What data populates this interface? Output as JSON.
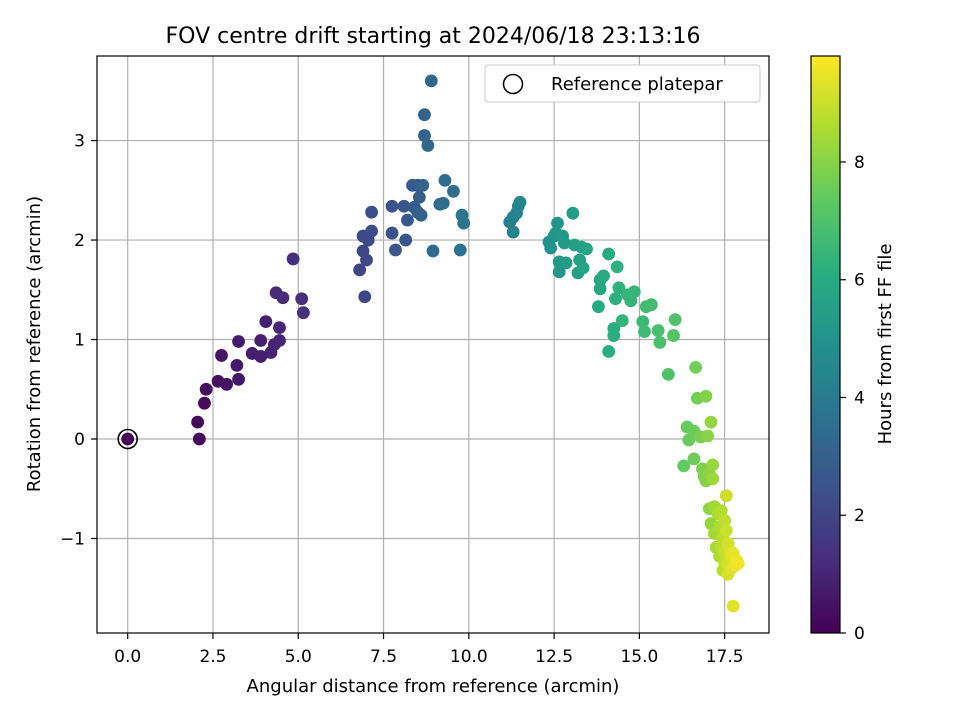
{
  "chart_data": {
    "type": "scatter",
    "title": "FOV centre drift starting at 2024/06/18 23:13:16",
    "xlabel": "Angular distance from reference (arcmin)",
    "ylabel": "Rotation from reference (arcmin)",
    "xlim": [
      -0.9,
      18.8
    ],
    "ylim": [
      -1.95,
      3.85
    ],
    "xticks": [
      0.0,
      2.5,
      5.0,
      7.5,
      10.0,
      12.5,
      15.0,
      17.5
    ],
    "xtick_labels": [
      "0.0",
      "2.5",
      "5.0",
      "7.5",
      "10.0",
      "12.5",
      "15.0",
      "17.5"
    ],
    "yticks": [
      -1,
      0,
      1,
      2,
      3
    ],
    "ytick_labels": [
      "−1",
      "0",
      "1",
      "2",
      "3"
    ],
    "grid": true,
    "legend": {
      "placement": "upper-right",
      "entries": [
        "Reference platepar"
      ]
    },
    "colorbar": {
      "label": "Hours from first FF file",
      "range": [
        0,
        9.8
      ],
      "ticks": [
        0,
        2,
        4,
        6,
        8
      ],
      "tick_labels": [
        "0",
        "2",
        "4",
        "6",
        "8"
      ],
      "colormap": "viridis"
    },
    "reference": {
      "name": "Reference platepar",
      "x": 0.0,
      "y": 0.0
    },
    "series": [
      {
        "values": [
          [
            0.0,
            0.0,
            0.0
          ],
          [
            2.1,
            0.0,
            0.15
          ],
          [
            2.05,
            0.17,
            0.2
          ],
          [
            2.25,
            0.36,
            0.3
          ],
          [
            2.3,
            0.5,
            0.35
          ],
          [
            2.65,
            0.58,
            0.45
          ],
          [
            2.9,
            0.55,
            0.5
          ],
          [
            2.75,
            0.84,
            0.55
          ],
          [
            3.25,
            0.6,
            0.6
          ],
          [
            3.2,
            0.74,
            0.65
          ],
          [
            3.25,
            0.98,
            0.7
          ],
          [
            3.65,
            0.86,
            0.75
          ],
          [
            3.9,
            0.83,
            0.8
          ],
          [
            3.9,
            0.99,
            0.85
          ],
          [
            4.05,
            1.18,
            0.9
          ],
          [
            4.2,
            0.87,
            0.95
          ],
          [
            4.3,
            0.95,
            1.0
          ],
          [
            4.45,
            0.99,
            1.05
          ],
          [
            4.45,
            1.12,
            1.1
          ],
          [
            4.35,
            1.47,
            1.15
          ],
          [
            4.55,
            1.42,
            1.2
          ],
          [
            4.85,
            1.81,
            1.3
          ],
          [
            5.1,
            1.41,
            1.35
          ],
          [
            5.15,
            1.27,
            1.4
          ],
          [
            6.8,
            1.7,
            2.0
          ],
          [
            6.95,
            1.43,
            2.05
          ],
          [
            6.9,
            1.89,
            2.1
          ],
          [
            7.0,
            1.8,
            2.15
          ],
          [
            6.9,
            2.04,
            2.2
          ],
          [
            7.05,
            2.0,
            2.25
          ],
          [
            7.15,
            2.09,
            2.3
          ],
          [
            7.15,
            2.28,
            2.35
          ],
          [
            7.75,
            2.34,
            2.45
          ],
          [
            7.75,
            2.07,
            2.5
          ],
          [
            7.85,
            1.9,
            2.55
          ],
          [
            8.1,
            2.34,
            2.6
          ],
          [
            8.15,
            2.0,
            2.65
          ],
          [
            8.2,
            2.2,
            2.7
          ],
          [
            8.4,
            2.33,
            2.75
          ],
          [
            8.35,
            2.55,
            2.8
          ],
          [
            8.5,
            2.55,
            2.85
          ],
          [
            8.55,
            2.43,
            2.9
          ],
          [
            8.5,
            2.28,
            2.95
          ],
          [
            8.6,
            2.25,
            3.0
          ],
          [
            8.65,
            2.55,
            3.05
          ],
          [
            8.7,
            3.26,
            3.1
          ],
          [
            8.7,
            3.05,
            3.15
          ],
          [
            8.8,
            2.95,
            3.2
          ],
          [
            8.9,
            3.6,
            3.25
          ],
          [
            8.95,
            1.89,
            3.3
          ],
          [
            9.15,
            2.36,
            3.4
          ],
          [
            9.25,
            2.37,
            3.45
          ],
          [
            9.3,
            2.6,
            3.5
          ],
          [
            9.55,
            2.49,
            3.55
          ],
          [
            9.75,
            1.9,
            3.65
          ],
          [
            9.8,
            2.25,
            3.7
          ],
          [
            9.85,
            2.17,
            3.75
          ],
          [
            11.2,
            2.18,
            4.2
          ],
          [
            11.3,
            2.23,
            4.25
          ],
          [
            11.3,
            2.08,
            4.3
          ],
          [
            11.4,
            2.27,
            4.35
          ],
          [
            11.45,
            2.34,
            4.4
          ],
          [
            11.5,
            2.38,
            4.45
          ],
          [
            12.35,
            1.98,
            4.9
          ],
          [
            12.4,
            1.92,
            4.95
          ],
          [
            12.5,
            2.04,
            5.0
          ],
          [
            12.6,
            2.17,
            5.05
          ],
          [
            12.55,
            2.07,
            5.1
          ],
          [
            12.65,
            1.78,
            5.15
          ],
          [
            12.65,
            1.68,
            5.2
          ],
          [
            12.75,
            2.04,
            5.25
          ],
          [
            12.8,
            1.97,
            5.3
          ],
          [
            12.85,
            1.77,
            5.35
          ],
          [
            13.05,
            2.27,
            5.4
          ],
          [
            13.1,
            1.95,
            5.45
          ],
          [
            13.2,
            1.67,
            5.5
          ],
          [
            13.25,
            1.8,
            5.55
          ],
          [
            13.3,
            1.93,
            5.6
          ],
          [
            13.35,
            1.72,
            5.65
          ],
          [
            13.45,
            1.91,
            5.7
          ],
          [
            13.85,
            1.6,
            5.8
          ],
          [
            13.85,
            1.51,
            5.85
          ],
          [
            13.95,
            1.64,
            5.9
          ],
          [
            13.8,
            1.33,
            5.95
          ],
          [
            14.1,
            1.86,
            6.0
          ],
          [
            14.1,
            0.88,
            6.05
          ],
          [
            14.25,
            1.11,
            6.1
          ],
          [
            14.25,
            1.04,
            6.15
          ],
          [
            14.3,
            1.41,
            6.2
          ],
          [
            14.35,
            1.73,
            6.25
          ],
          [
            14.4,
            1.52,
            6.3
          ],
          [
            14.5,
            1.19,
            6.35
          ],
          [
            14.65,
            1.45,
            6.4
          ],
          [
            14.75,
            1.39,
            6.45
          ],
          [
            14.85,
            1.48,
            6.5
          ],
          [
            15.1,
            1.18,
            6.6
          ],
          [
            15.15,
            1.08,
            6.65
          ],
          [
            15.2,
            1.33,
            6.7
          ],
          [
            15.35,
            1.35,
            6.75
          ],
          [
            15.55,
            1.09,
            6.85
          ],
          [
            15.6,
            0.97,
            6.9
          ],
          [
            15.85,
            0.65,
            7.0
          ],
          [
            16.05,
            1.2,
            7.05
          ],
          [
            16.0,
            1.04,
            7.1
          ],
          [
            16.3,
            -0.27,
            7.4
          ],
          [
            16.4,
            0.12,
            7.45
          ],
          [
            16.45,
            -0.01,
            7.5
          ],
          [
            16.6,
            0.08,
            7.55
          ],
          [
            16.6,
            -0.2,
            7.6
          ],
          [
            16.65,
            0.72,
            7.65
          ],
          [
            16.7,
            0.41,
            7.7
          ],
          [
            16.8,
            0.02,
            7.75
          ],
          [
            16.85,
            -0.3,
            7.8
          ],
          [
            16.9,
            -0.38,
            7.85
          ],
          [
            16.95,
            0.43,
            7.9
          ],
          [
            16.95,
            -0.42,
            7.95
          ],
          [
            17.0,
            0.03,
            8.0
          ],
          [
            17.05,
            -0.35,
            8.05
          ],
          [
            17.05,
            -0.7,
            8.1
          ],
          [
            17.1,
            0.17,
            8.15
          ],
          [
            17.1,
            -0.85,
            8.2
          ],
          [
            17.15,
            -0.26,
            8.25
          ],
          [
            17.15,
            -0.4,
            8.3
          ],
          [
            17.2,
            -0.68,
            8.35
          ],
          [
            17.2,
            -0.95,
            8.4
          ],
          [
            17.25,
            -1.09,
            8.45
          ],
          [
            17.3,
            -0.75,
            8.5
          ],
          [
            17.35,
            -1.18,
            8.55
          ],
          [
            17.35,
            -0.88,
            8.6
          ],
          [
            17.4,
            -0.72,
            8.65
          ],
          [
            17.4,
            -1.08,
            8.7
          ],
          [
            17.45,
            -1.32,
            8.75
          ],
          [
            17.45,
            -1.0,
            8.8
          ],
          [
            17.5,
            -0.82,
            8.85
          ],
          [
            17.5,
            -1.24,
            8.9
          ],
          [
            17.5,
            -1.13,
            8.95
          ],
          [
            17.55,
            -0.92,
            9.0
          ],
          [
            17.55,
            -0.57,
            9.05
          ],
          [
            17.6,
            -1.05,
            9.1
          ],
          [
            17.6,
            -1.26,
            9.15
          ],
          [
            17.6,
            -1.36,
            9.2
          ],
          [
            17.65,
            -1.12,
            9.25
          ],
          [
            17.7,
            -1.18,
            9.3
          ],
          [
            17.7,
            -1.3,
            9.35
          ],
          [
            17.75,
            -1.68,
            9.4
          ],
          [
            17.75,
            -1.15,
            9.45
          ],
          [
            17.8,
            -1.27,
            9.5
          ],
          [
            17.85,
            -1.22,
            9.55
          ],
          [
            17.9,
            -1.25,
            9.6
          ]
        ]
      }
    ]
  }
}
